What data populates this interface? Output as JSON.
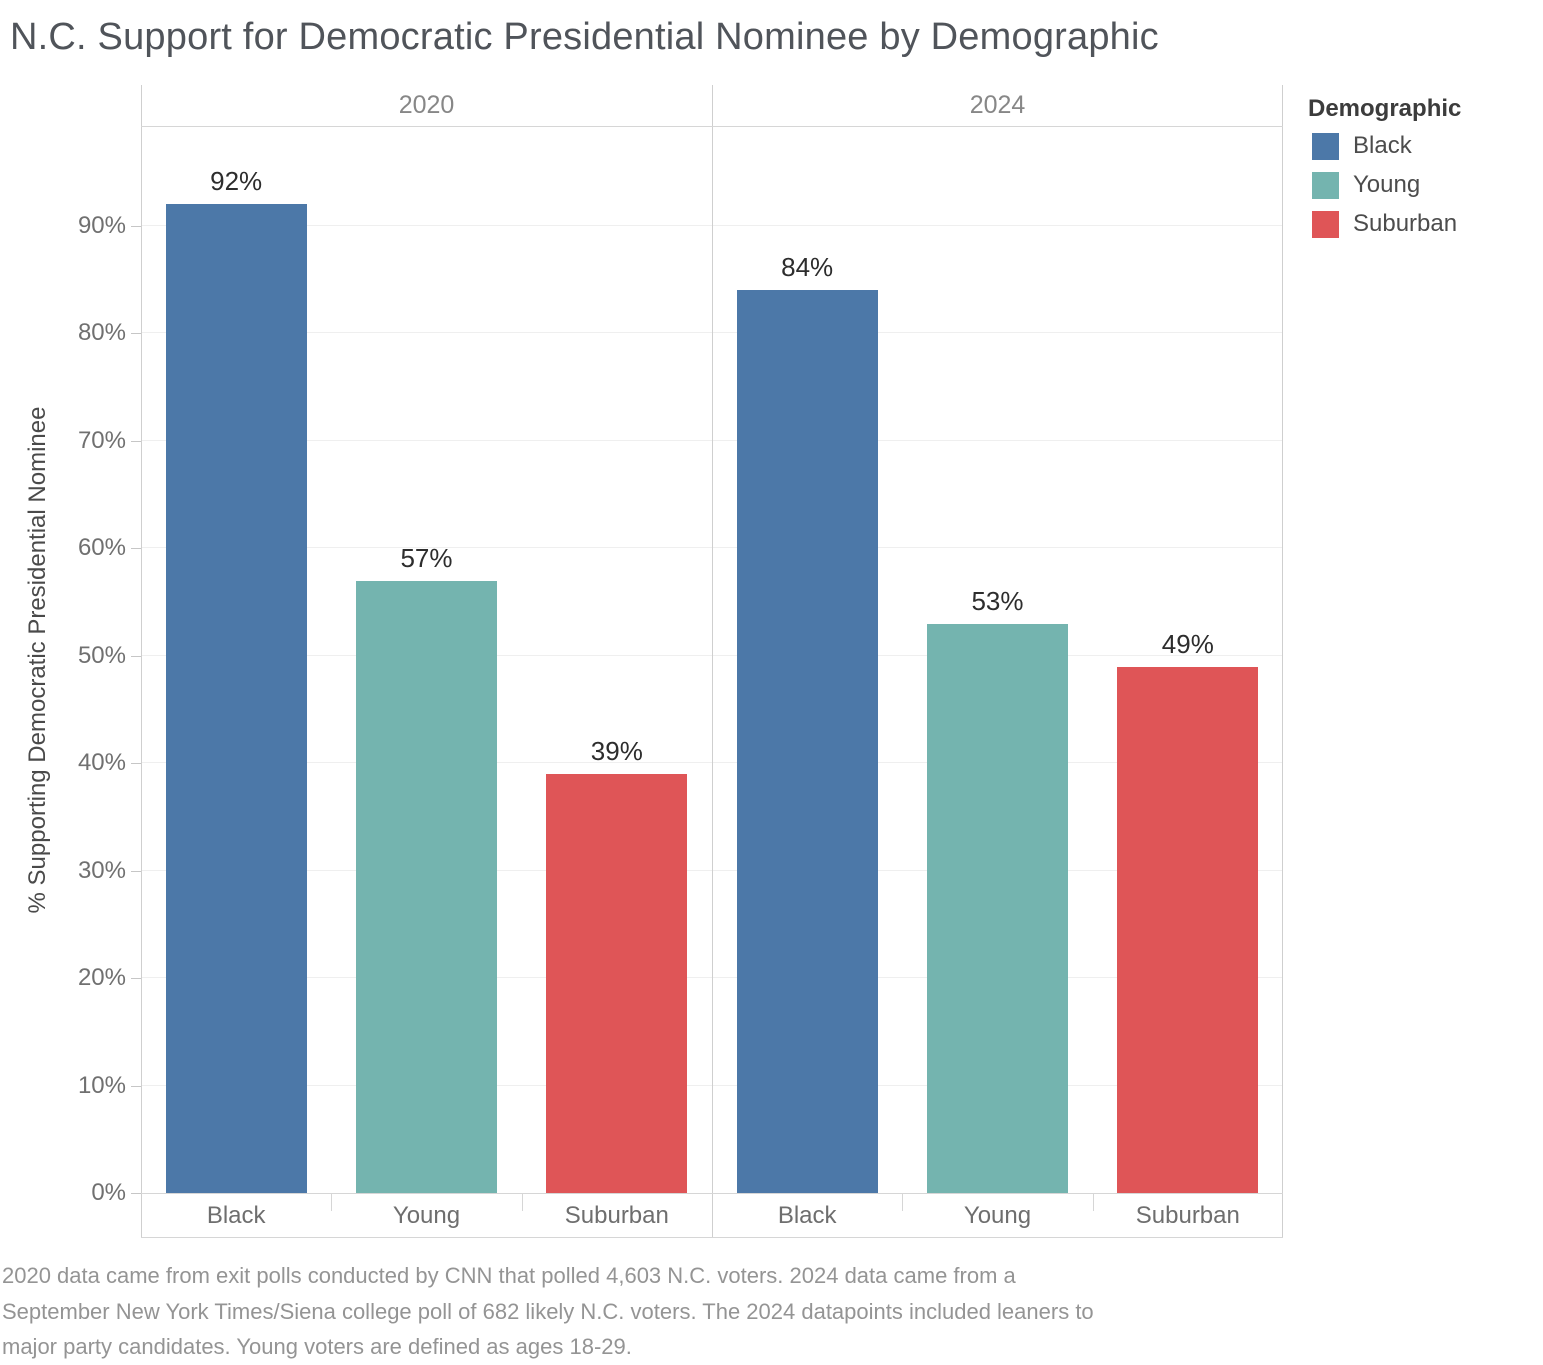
{
  "chart_data": {
    "type": "bar",
    "title": "N.C. Support for Democratic Presidential Nominee by Demographic",
    "ylabel": "% Supporting Democratic Presidential Nominee",
    "ylim": [
      0,
      100
    ],
    "yticks": [
      0,
      10,
      20,
      30,
      40,
      50,
      60,
      70,
      80,
      90
    ],
    "ytick_suffix": "%",
    "grid": true,
    "categories": [
      "Black",
      "Young",
      "Suburban"
    ],
    "panels": [
      {
        "label": "2020",
        "values": [
          92,
          57,
          39
        ]
      },
      {
        "label": "2024",
        "values": [
          84,
          53,
          49
        ]
      }
    ],
    "value_suffix": "%",
    "colors": {
      "Black": "#4c78a8",
      "Young": "#74b4af",
      "Suburban": "#df5557"
    },
    "legend": {
      "title": "Demographic",
      "position": "top-right",
      "items": [
        {
          "label": "Black",
          "color": "#4c78a8"
        },
        {
          "label": "Young",
          "color": "#74b4af"
        },
        {
          "label": "Suburban",
          "color": "#df5557"
        }
      ]
    }
  },
  "footnote": {
    "lines": [
      "2020 data came from exit polls conducted by CNN that polled 4,603 N.C. voters. 2024 data came from a",
      "September New York Times/Siena college poll of 682 likely N.C. voters. The 2024 datapoints included leaners to",
      "major party candidates. Young voters are defined as ages 18-29."
    ]
  }
}
